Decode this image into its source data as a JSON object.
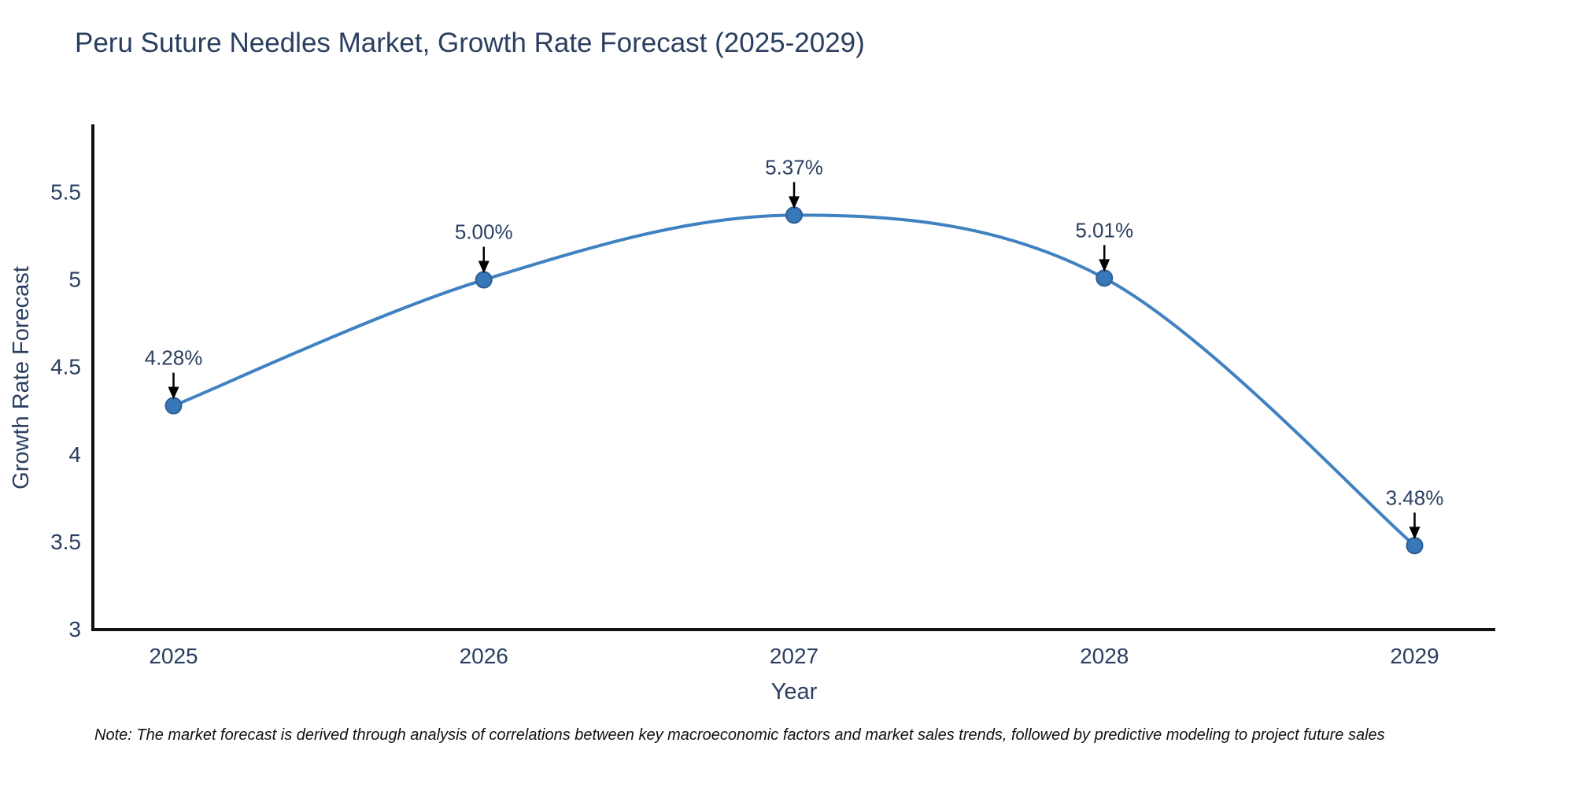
{
  "page": {
    "note": "Note: The market forecast is derived through analysis of correlations between key macroeconomic factors and market sales trends, followed by predictive modeling to project future sales"
  },
  "chart_data": {
    "type": "line",
    "title": "Peru Suture Needles Market, Growth Rate Forecast (2025-2029)",
    "xlabel": "Year",
    "ylabel": "Growth Rate Forecast",
    "x": [
      2025,
      2026,
      2027,
      2028,
      2029
    ],
    "series": [
      {
        "name": "Growth Rate Forecast",
        "values": [
          4.28,
          5.0,
          5.37,
          5.01,
          3.48
        ],
        "point_labels": [
          "4.28%",
          "5.00%",
          "5.37%",
          "5.01%",
          "3.48%"
        ]
      }
    ],
    "x_tick_labels": [
      "2025",
      "2026",
      "2027",
      "2028",
      "2029"
    ],
    "y_tick_labels": [
      "5.5",
      "5",
      "4.5",
      "4",
      "3.5",
      "3"
    ],
    "xlim": [
      2024.74,
      2029.26
    ],
    "ylim": [
      3,
      5.88
    ],
    "grid": false,
    "legend": "none",
    "line_shape": "spline",
    "marker": "circle",
    "annotation_style": "value label above each point with black arrow pointing down to marker",
    "colors": {
      "line": "#3f81c1",
      "marker_fill": "#3878b8",
      "marker_edge": "#2b5f96",
      "arrow": "#000000",
      "axis_line": "#111111",
      "text": "#2a3f5f",
      "note_text": "#111111",
      "background": "#ffffff"
    }
  }
}
